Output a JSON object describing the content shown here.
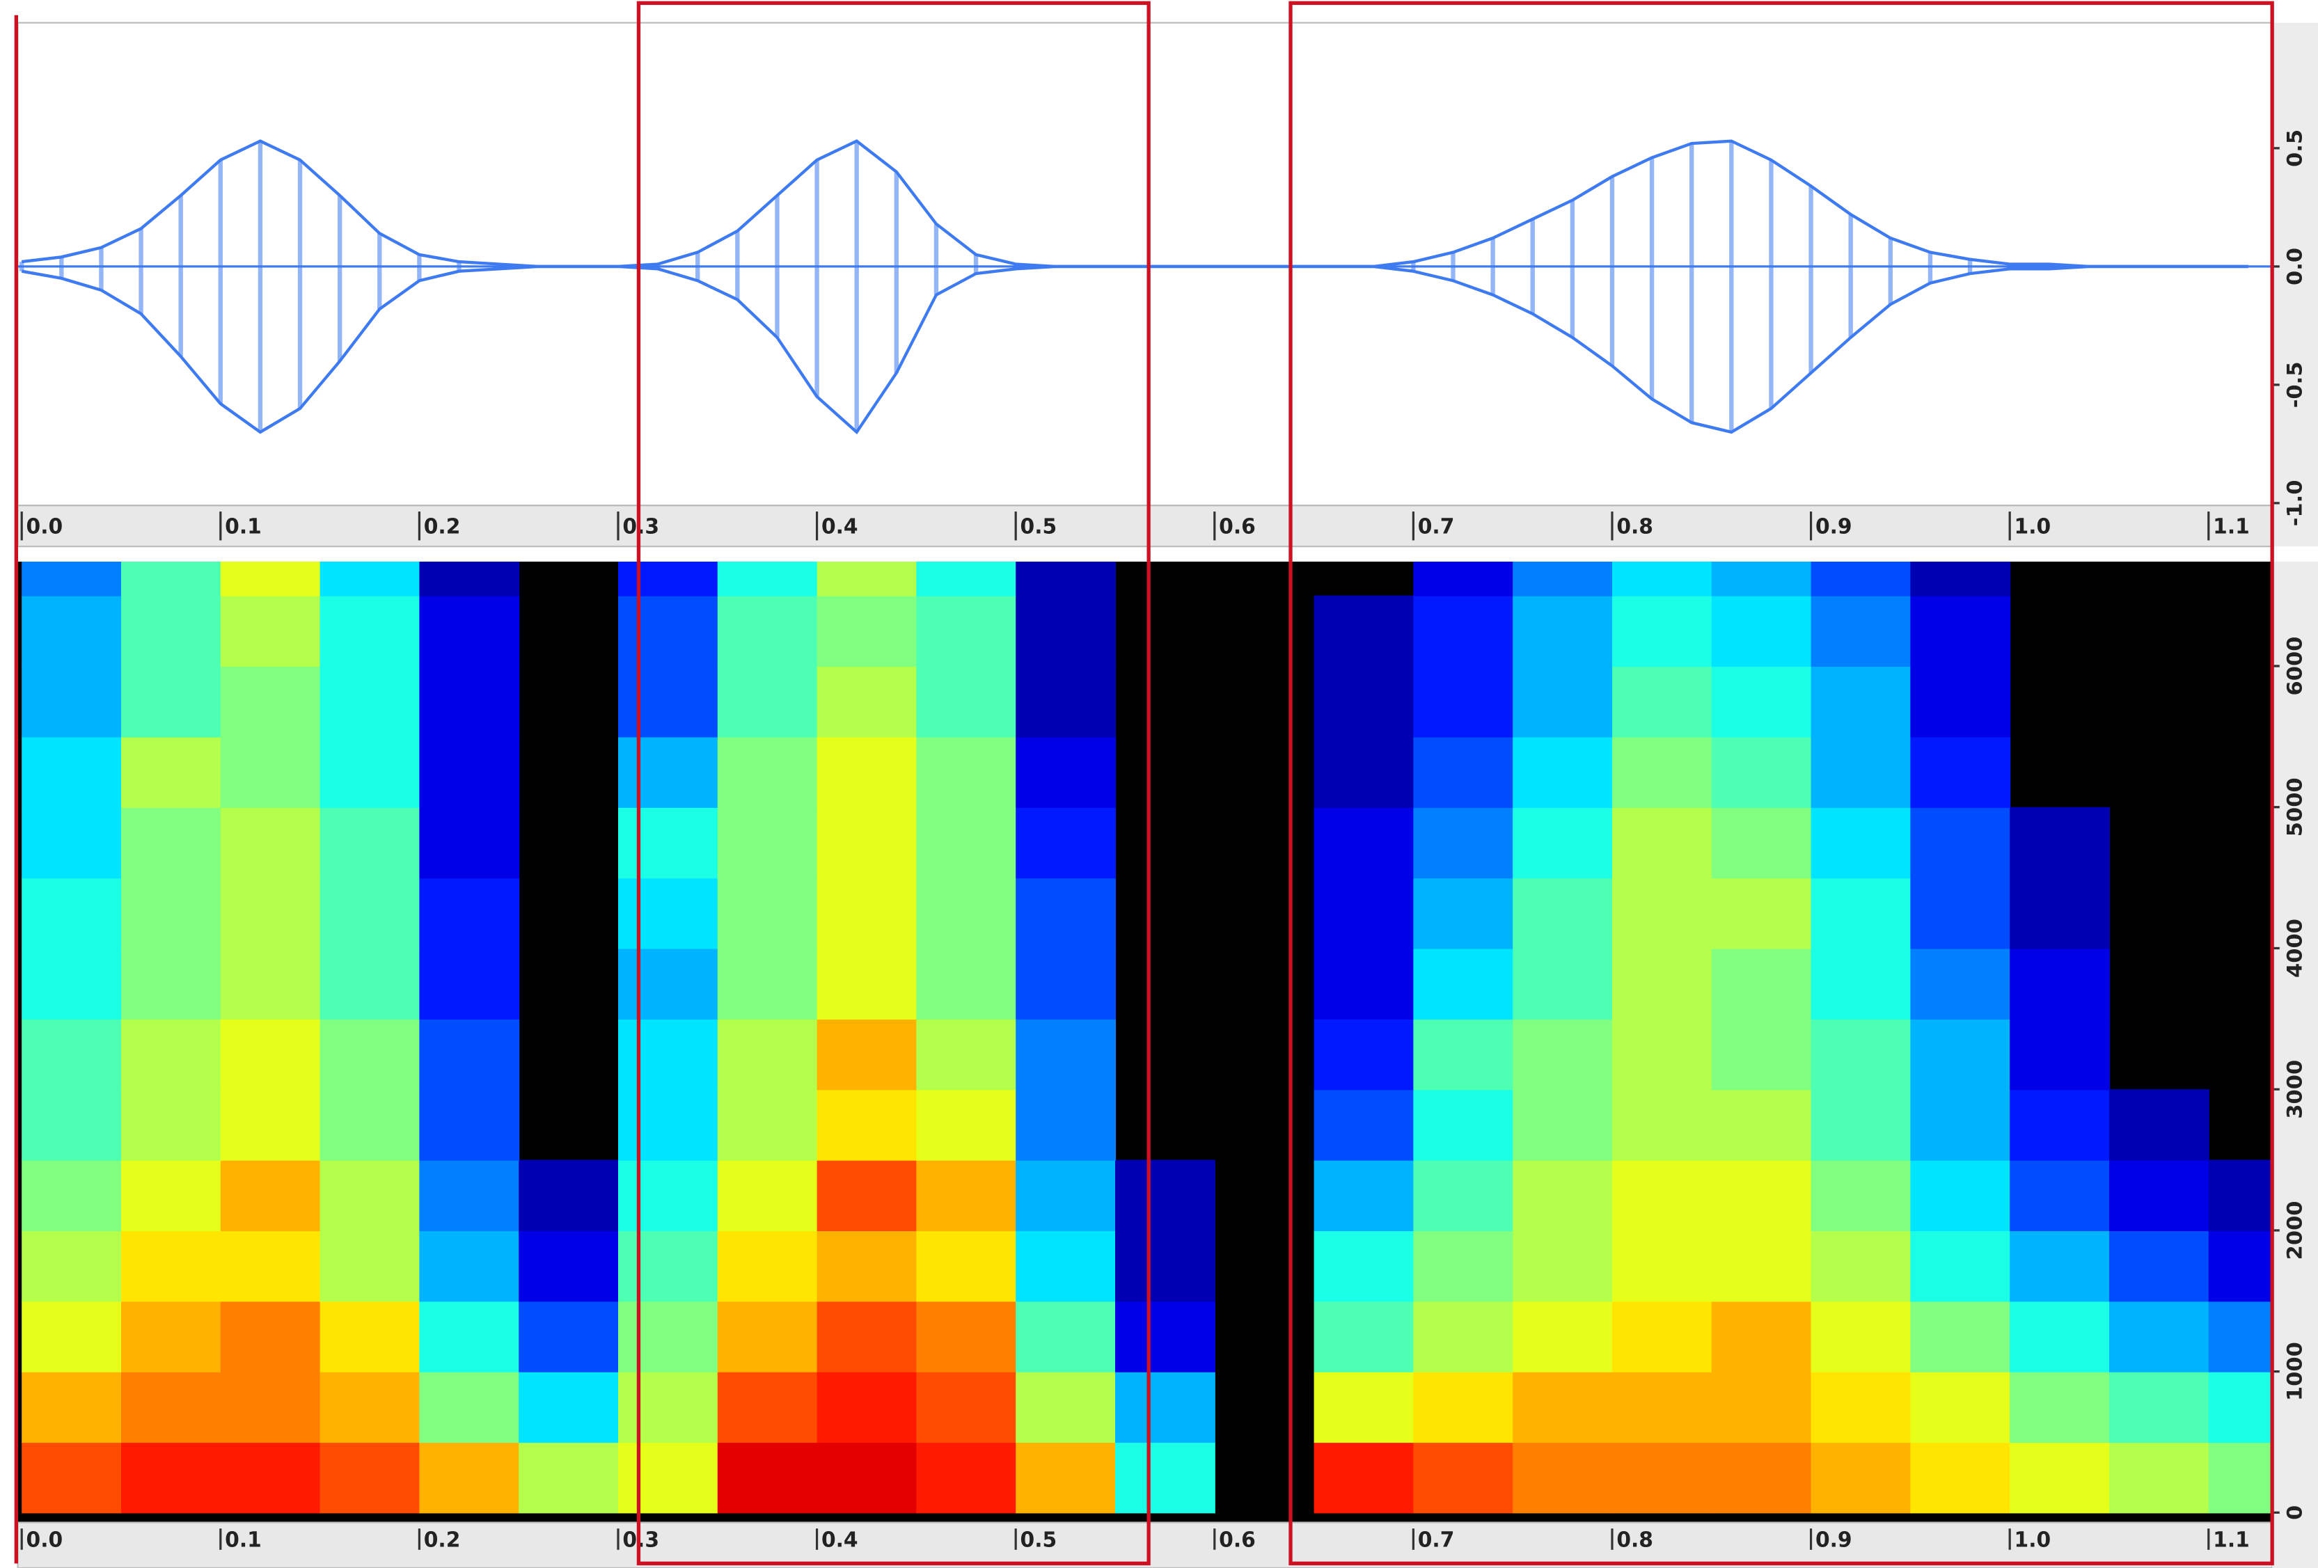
{
  "chart_data": [
    {
      "type": "waveform",
      "x": [
        0,
        0.02,
        0.04,
        0.06,
        0.08,
        0.1,
        0.12,
        0.14,
        0.16,
        0.18,
        0.2,
        0.22,
        0.24,
        0.26,
        0.28,
        0.3,
        0.32,
        0.34,
        0.36,
        0.38,
        0.4,
        0.42,
        0.44,
        0.46,
        0.48,
        0.5,
        0.52,
        0.54,
        0.56,
        0.58,
        0.6,
        0.62,
        0.64,
        0.66,
        0.68,
        0.7,
        0.72,
        0.74,
        0.76,
        0.78,
        0.8,
        0.82,
        0.84,
        0.86,
        0.88,
        0.9,
        0.92,
        0.94,
        0.96,
        0.98,
        1,
        1.02,
        1.04,
        1.06,
        1.08,
        1.1,
        1.12
      ],
      "series": [
        {
          "color": "#3f7bf0",
          "values": [
            0.02,
            0.04,
            0.08,
            0.16,
            0.3,
            0.45,
            0.53,
            0.45,
            0.3,
            0.14,
            0.05,
            0.02,
            0.01,
            0,
            0,
            0,
            0.01,
            0.06,
            0.15,
            0.3,
            0.45,
            0.53,
            0.4,
            0.18,
            0.05,
            0.01,
            0,
            0,
            0,
            0,
            0,
            0,
            0,
            0,
            0,
            0.02,
            0.06,
            0.12,
            0.2,
            0.28,
            0.38,
            0.46,
            0.52,
            0.53,
            0.45,
            0.34,
            0.22,
            0.12,
            0.06,
            0.03,
            0.01,
            0.01,
            0,
            0,
            0,
            0,
            0
          ]
        },
        {
          "color": "#3f7bf0",
          "values": [
            -0.02,
            -0.05,
            -0.1,
            -0.2,
            -0.38,
            -0.58,
            -0.7,
            -0.6,
            -0.4,
            -0.18,
            -0.06,
            -0.02,
            -0.01,
            0,
            0,
            0,
            -0.01,
            -0.06,
            -0.14,
            -0.3,
            -0.55,
            -0.7,
            -0.45,
            -0.12,
            -0.03,
            -0.01,
            0,
            0,
            0,
            0,
            0,
            0,
            0,
            0,
            0,
            -0.02,
            -0.06,
            -0.12,
            -0.2,
            -0.3,
            -0.42,
            -0.56,
            -0.66,
            -0.7,
            -0.6,
            -0.45,
            -0.3,
            -0.16,
            -0.07,
            -0.03,
            -0.01,
            -0.01,
            0,
            0,
            0,
            0,
            0
          ]
        }
      ],
      "xlim": [
        -0.002,
        1.132
      ],
      "xticks": [
        {
          "value": 0,
          "label": "0.0"
        },
        0.1,
        0.2,
        0.3,
        0.4,
        0.5,
        0.6,
        0.7,
        0.8,
        0.9,
        {
          "value": 1,
          "label": "1.0"
        },
        1.1
      ],
      "ylim": [
        -1.01,
        1.03
      ],
      "yticks": [
        0.5,
        {
          "value": 0,
          "label": "0.0"
        },
        -0.5,
        {
          "value": -1,
          "label": "-1.0"
        }
      ]
    },
    {
      "type": "spectrogram",
      "colormap": "jet",
      "x": [
        0,
        0.05,
        0.1,
        0.15,
        0.2,
        0.25,
        0.3,
        0.35,
        0.4,
        0.45,
        0.5,
        0.55,
        0.6,
        0.65,
        0.7,
        0.75,
        0.8,
        0.85,
        0.9,
        0.95,
        1,
        1.05,
        1.1
      ],
      "y": [
        0,
        500,
        1000,
        1500,
        2000,
        2500,
        3000,
        3500,
        4000,
        4500,
        5000,
        5500,
        6000,
        6500
      ],
      "values": [
        [
          0.8,
          0.85,
          0.85,
          0.8,
          0.7,
          0.55,
          0.6,
          0.9,
          0.9,
          0.85,
          0.7,
          0.4,
          0,
          0.85,
          0.8,
          0.75,
          0.75,
          0.75,
          0.7,
          0.65,
          0.6,
          0.55,
          0.5
        ],
        [
          0.7,
          0.75,
          0.75,
          0.7,
          0.5,
          0.35,
          0.55,
          0.8,
          0.85,
          0.8,
          0.55,
          0.3,
          0,
          0.6,
          0.65,
          0.7,
          0.7,
          0.7,
          0.65,
          0.6,
          0.5,
          0.45,
          0.4
        ],
        [
          0.6,
          0.7,
          0.75,
          0.65,
          0.4,
          0.2,
          0.5,
          0.7,
          0.8,
          0.75,
          0.45,
          0.1,
          0,
          0.45,
          0.55,
          0.6,
          0.65,
          0.7,
          0.6,
          0.5,
          0.4,
          0.3,
          0.25
        ],
        [
          0.55,
          0.65,
          0.65,
          0.55,
          0.3,
          0.1,
          0.45,
          0.65,
          0.7,
          0.65,
          0.35,
          0.05,
          0,
          0.4,
          0.5,
          0.55,
          0.6,
          0.6,
          0.55,
          0.4,
          0.3,
          0.2,
          0.1
        ],
        [
          0.5,
          0.6,
          0.7,
          0.55,
          0.25,
          0.05,
          0.4,
          0.6,
          0.8,
          0.7,
          0.3,
          0.05,
          0,
          0.3,
          0.45,
          0.55,
          0.6,
          0.6,
          0.5,
          0.35,
          0.2,
          0.1,
          0.05
        ],
        [
          0.45,
          0.55,
          0.6,
          0.5,
          0.2,
          0,
          0.35,
          0.55,
          0.65,
          0.6,
          0.25,
          0,
          0,
          0.2,
          0.4,
          0.5,
          0.55,
          0.55,
          0.45,
          0.3,
          0.15,
          0.05,
          0
        ],
        [
          0.45,
          0.55,
          0.6,
          0.5,
          0.2,
          0,
          0.35,
          0.55,
          0.7,
          0.55,
          0.25,
          0,
          0,
          0.15,
          0.45,
          0.5,
          0.55,
          0.5,
          0.45,
          0.3,
          0.1,
          0,
          0
        ],
        [
          0.4,
          0.5,
          0.55,
          0.45,
          0.15,
          0,
          0.3,
          0.5,
          0.6,
          0.5,
          0.2,
          0,
          0,
          0.1,
          0.35,
          0.45,
          0.55,
          0.5,
          0.4,
          0.25,
          0.1,
          0,
          0
        ],
        [
          0.4,
          0.5,
          0.55,
          0.45,
          0.15,
          0,
          0.35,
          0.5,
          0.6,
          0.5,
          0.2,
          0,
          0,
          0.1,
          0.3,
          0.45,
          0.55,
          0.55,
          0.4,
          0.2,
          0.05,
          0,
          0
        ],
        [
          0.35,
          0.5,
          0.55,
          0.45,
          0.1,
          0,
          0.4,
          0.5,
          0.6,
          0.5,
          0.15,
          0,
          0,
          0.1,
          0.25,
          0.4,
          0.55,
          0.5,
          0.35,
          0.2,
          0.05,
          0,
          0
        ],
        [
          0.35,
          0.55,
          0.5,
          0.4,
          0.1,
          0,
          0.3,
          0.5,
          0.6,
          0.5,
          0.1,
          0,
          0,
          0.05,
          0.2,
          0.35,
          0.5,
          0.45,
          0.3,
          0.15,
          0,
          0,
          0
        ],
        [
          0.3,
          0.45,
          0.5,
          0.4,
          0.1,
          0,
          0.2,
          0.45,
          0.55,
          0.45,
          0.05,
          0,
          0,
          0.05,
          0.15,
          0.3,
          0.45,
          0.4,
          0.3,
          0.1,
          0,
          0,
          0
        ],
        [
          0.3,
          0.45,
          0.55,
          0.4,
          0.1,
          0,
          0.2,
          0.45,
          0.5,
          0.45,
          0.05,
          0,
          0,
          0.05,
          0.15,
          0.3,
          0.4,
          0.35,
          0.25,
          0.1,
          0,
          0,
          0
        ],
        [
          0.25,
          0.45,
          0.6,
          0.35,
          0.05,
          0,
          0.15,
          0.4,
          0.55,
          0.4,
          0.05,
          0,
          0,
          0,
          0.1,
          0.25,
          0.35,
          0.3,
          0.2,
          0.05,
          0,
          0,
          0
        ]
      ],
      "xlim": [
        -0.002,
        1.132
      ],
      "xticks": [
        {
          "value": 0,
          "label": "0.0"
        },
        0.1,
        0.2,
        0.3,
        0.4,
        0.5,
        0.6,
        0.7,
        0.8,
        0.9,
        {
          "value": 1,
          "label": "1.0"
        },
        1.1
      ],
      "ylim": [
        -70,
        6740
      ],
      "yticks": [
        0,
        1000,
        2000,
        3000,
        4000,
        5000,
        6000
      ]
    }
  ]
}
